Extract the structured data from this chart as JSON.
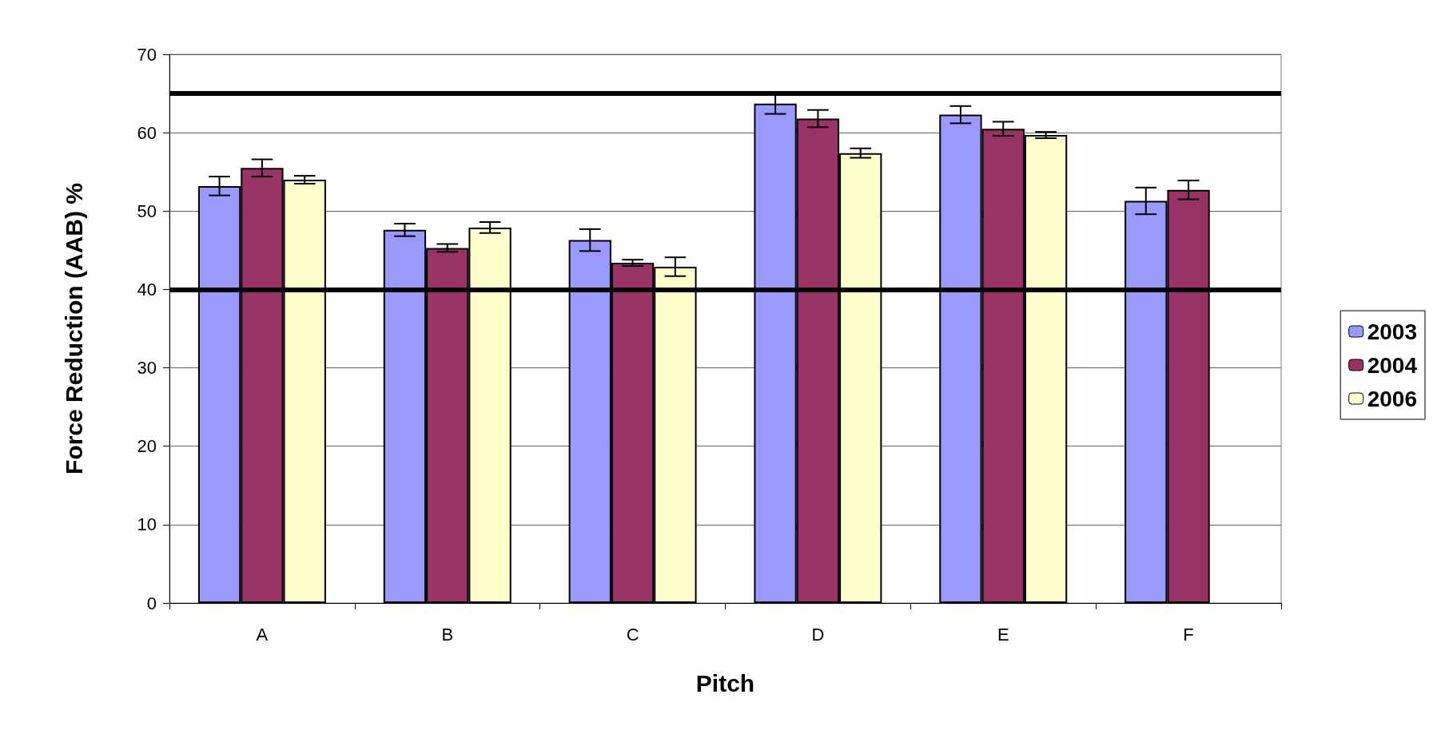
{
  "chart_data": {
    "type": "bar",
    "xlabel": "Pitch",
    "ylabel": "Force Reduction (AAB) %",
    "categories": [
      "A",
      "B",
      "C",
      "D",
      "E",
      "F"
    ],
    "series": [
      {
        "name": "2003",
        "color": "#9999ff",
        "values": [
          53.2,
          47.6,
          46.3,
          63.7,
          62.3,
          51.3
        ],
        "errors": [
          1.2,
          0.8,
          1.4,
          1.3,
          1.1,
          1.7
        ]
      },
      {
        "name": "2004",
        "color": "#993366",
        "values": [
          55.5,
          45.3,
          43.4,
          61.8,
          60.5,
          52.7
        ],
        "errors": [
          1.1,
          0.5,
          0.4,
          1.1,
          0.9,
          1.2
        ]
      },
      {
        "name": "2006",
        "color": "#ffffcc",
        "values": [
          54.0,
          47.9,
          42.9,
          57.4,
          59.7,
          null
        ],
        "errors": [
          0.5,
          0.7,
          1.2,
          0.6,
          0.4,
          null
        ]
      }
    ],
    "ylim": [
      0,
      70
    ],
    "yticks": [
      0,
      10,
      20,
      30,
      40,
      50,
      60,
      70
    ],
    "grid": "y",
    "legend": "right",
    "ref_lines": [
      {
        "axis": "y",
        "value": 65,
        "color": "#000000"
      },
      {
        "axis": "y",
        "value": 40,
        "color": "#000000"
      }
    ]
  }
}
